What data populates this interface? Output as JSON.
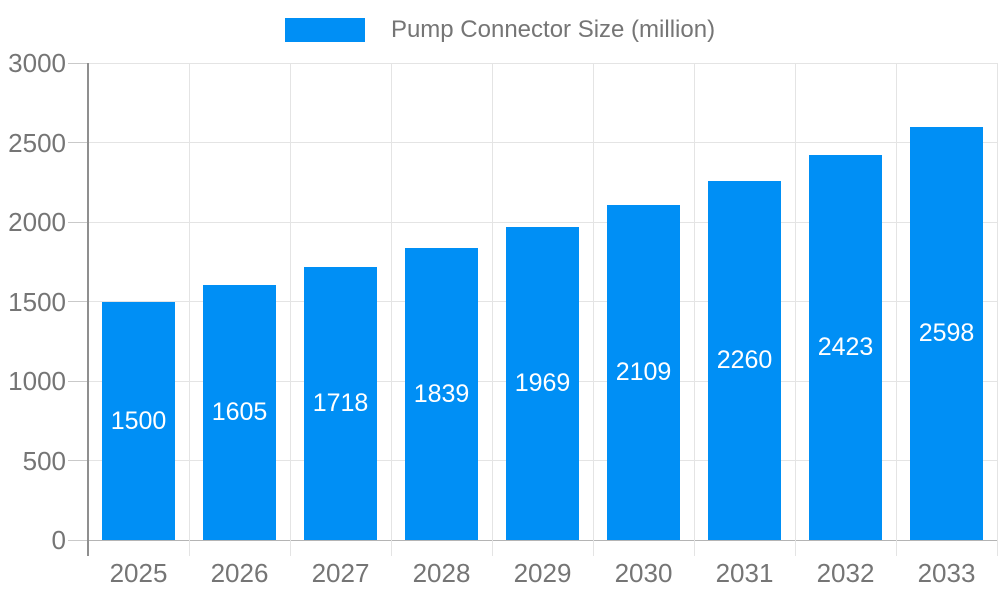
{
  "legend": {
    "label": "Pump Connector Size (million)"
  },
  "chart_data": {
    "type": "bar",
    "title": "Pump Connector Size (million)",
    "categories": [
      "2025",
      "2026",
      "2027",
      "2028",
      "2029",
      "2030",
      "2031",
      "2032",
      "2033"
    ],
    "values": [
      1500,
      1605,
      1718,
      1839,
      1969,
      2109,
      2260,
      2423,
      2598
    ],
    "series_name": "Pump Connector Size (million)",
    "xlabel": "",
    "ylabel": "",
    "ylim": [
      0,
      3000
    ],
    "ytick_step": 500,
    "ytick_labels": [
      "0",
      "500",
      "1000",
      "1500",
      "2000",
      "2500",
      "3000"
    ],
    "grid": true,
    "legend_position": "top-center",
    "bar_labels_inside": true,
    "colors": {
      "bar": "#008FF5",
      "bar_value_text": "#FFFFFF",
      "axis_text": "#757575",
      "legend_text": "#757575",
      "gridline": "#E4E4E4",
      "axis_line": "#8F8F8F",
      "baseline": "#B4B4B4",
      "tick": "#C9C9C9",
      "background": "#FFFFFF"
    }
  }
}
